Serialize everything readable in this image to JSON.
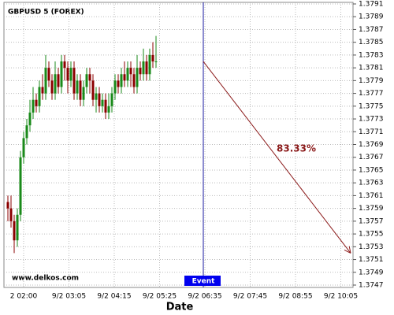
{
  "chart_data": {
    "type": "candlestick",
    "title": "GBPUSD 5 (FOREX)",
    "x_label": "Date",
    "watermark": "www.delkos.com",
    "categories": [
      "2 02:00",
      "9/2 03:05",
      "9/2 04:15",
      "9/2 05:25",
      "9/2 06:35",
      "9/2 07:45",
      "9/2 08:55",
      "9/2 10:05"
    ],
    "ylim": [
      1.3747,
      1.3791
    ],
    "yticks": [
      1.3747,
      1.3749,
      1.3751,
      1.3753,
      1.3755,
      1.3757,
      1.3759,
      1.3761,
      1.3763,
      1.3765,
      1.3767,
      1.3769,
      1.3771,
      1.3773,
      1.3775,
      1.3777,
      1.3779,
      1.3781,
      1.3783,
      1.3785,
      1.3787,
      1.3789,
      1.3791
    ],
    "grid": true,
    "up_color": "#1a8a1a",
    "down_color": "#8b0000",
    "open": [
      1.376,
      1.3759,
      1.3757,
      1.3754,
      1.3758,
      1.3767,
      1.377,
      1.3772,
      1.3774,
      1.3776,
      1.3775,
      1.3778,
      1.3777,
      1.3781,
      1.3779,
      1.3777,
      1.378,
      1.3778,
      1.3782,
      1.3781,
      1.3779,
      1.3781,
      1.3777,
      1.3779,
      1.3776,
      1.3778,
      1.378,
      1.3779,
      1.3776,
      1.3777,
      1.3775,
      1.3776,
      1.3774,
      1.3775,
      1.3777,
      1.3779,
      1.3778,
      1.378,
      1.3779,
      1.3781,
      1.378,
      1.3778,
      1.3781,
      1.378,
      1.3782,
      1.378,
      1.3783,
      1.3782
    ],
    "high": [
      1.3761,
      1.3761,
      1.3758,
      1.3759,
      1.3768,
      1.3771,
      1.3773,
      1.3776,
      1.3778,
      1.3777,
      1.3779,
      1.378,
      1.3783,
      1.3782,
      1.378,
      1.3782,
      1.3781,
      1.3783,
      1.3783,
      1.3782,
      1.3782,
      1.3782,
      1.378,
      1.378,
      1.3779,
      1.3781,
      1.3781,
      1.378,
      1.3778,
      1.3778,
      1.3777,
      1.3777,
      1.3777,
      1.3778,
      1.378,
      1.378,
      1.3781,
      1.3782,
      1.3782,
      1.3782,
      1.3781,
      1.3783,
      1.3782,
      1.3784,
      1.3783,
      1.3784,
      1.3785,
      1.3786
    ],
    "low": [
      1.3757,
      1.3756,
      1.3752,
      1.3753,
      1.3757,
      1.3766,
      1.3769,
      1.3771,
      1.3773,
      1.3774,
      1.3774,
      1.3776,
      1.3776,
      1.3778,
      1.3776,
      1.3776,
      1.3777,
      1.3777,
      1.3779,
      1.3777,
      1.3778,
      1.3776,
      1.3776,
      1.3775,
      1.3775,
      1.3777,
      1.3777,
      1.3775,
      1.3774,
      1.3774,
      1.3774,
      1.3773,
      1.3773,
      1.3774,
      1.3776,
      1.3777,
      1.3777,
      1.3778,
      1.3778,
      1.3778,
      1.3777,
      1.3777,
      1.3779,
      1.3779,
      1.3779,
      1.3779,
      1.3781,
      1.3781
    ],
    "close": [
      1.3759,
      1.3757,
      1.3754,
      1.3758,
      1.3767,
      1.377,
      1.3772,
      1.3774,
      1.3776,
      1.3775,
      1.3778,
      1.3777,
      1.3781,
      1.3779,
      1.3777,
      1.378,
      1.3778,
      1.3782,
      1.3781,
      1.3779,
      1.3781,
      1.3777,
      1.3779,
      1.3776,
      1.3778,
      1.378,
      1.3779,
      1.3776,
      1.3777,
      1.3775,
      1.3776,
      1.3774,
      1.3775,
      1.3777,
      1.3779,
      1.3778,
      1.378,
      1.3779,
      1.3781,
      1.378,
      1.3778,
      1.3781,
      1.378,
      1.3782,
      1.378,
      1.3783,
      1.3782,
      1.3782
    ],
    "event": {
      "label": "Event",
      "color": "#1a1aa0"
    },
    "prediction": {
      "start": 1.3782,
      "end": 1.3752,
      "label": "83.33%",
      "color": "#8b1a1a"
    }
  }
}
